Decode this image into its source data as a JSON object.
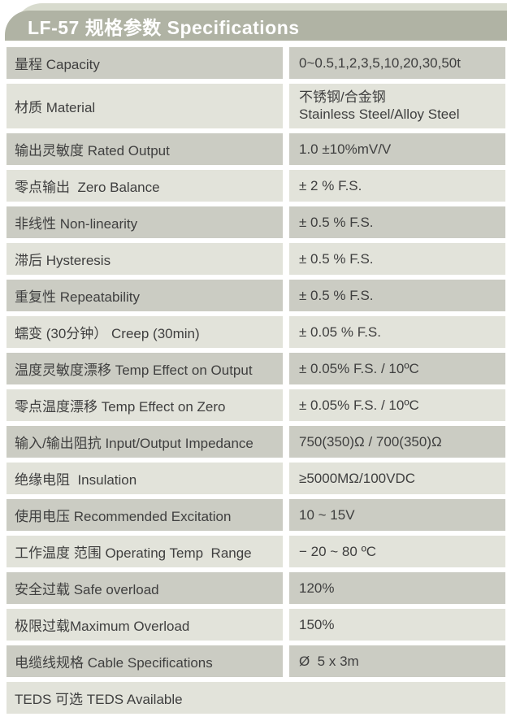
{
  "header": {
    "title": "LF-57 规格参数 Specifications"
  },
  "colors": {
    "header_bg": "#b0b3a4",
    "header_echo": "#d8dbce",
    "row_dark": "#cbccc3",
    "row_light": "#e2e3da",
    "text": "#3f3f3f",
    "header_text": "#ffffff"
  },
  "table": {
    "rows": [
      {
        "label": "量程 Capacity",
        "value": "0~0.5,1,2,3,5,10,20,30,50t",
        "shade": "dark"
      },
      {
        "label": "材质 Material",
        "value_lines": [
          "不锈钢/合金钢",
          "Stainless Steel/Alloy Steel"
        ],
        "shade": "light"
      },
      {
        "label": "输出灵敏度 Rated Output",
        "value": "1.0 ±10%mV/V",
        "shade": "dark"
      },
      {
        "label": "零点输出  Zero Balance",
        "value": "± 2 % F.S.",
        "shade": "light"
      },
      {
        "label": "非线性 Non-linearity",
        "value": "± 0.5 % F.S.",
        "shade": "dark"
      },
      {
        "label": "滞后 Hysteresis",
        "value": "± 0.5 % F.S.",
        "shade": "light"
      },
      {
        "label": "重复性 Repeatability",
        "value": "± 0.5 % F.S.",
        "shade": "dark"
      },
      {
        "label": "蠕变 (30分钟） Creep (30min)",
        "value": "± 0.05 % F.S.",
        "shade": "light"
      },
      {
        "label": "温度灵敏度漂移 Temp Effect on Output",
        "value": "± 0.05% F.S. / 10ºC",
        "shade": "dark"
      },
      {
        "label": "零点温度漂移 Temp Effect on Zero",
        "value": "± 0.05% F.S. / 10ºC",
        "shade": "light"
      },
      {
        "label": "输入/输出阻抗 Input/Output Impedance",
        "value": "750(350)Ω / 700(350)Ω",
        "shade": "dark"
      },
      {
        "label": "绝缘电阻  Insulation",
        "value": "≥5000MΩ/100VDC",
        "shade": "light"
      },
      {
        "label": "使用电压 Recommended Excitation",
        "value": "10 ~ 15V",
        "shade": "dark"
      },
      {
        "label": "工作温度 范围 Operating Temp  Range",
        "value": "− 20 ~ 80 ºC",
        "shade": "light"
      },
      {
        "label": "安全过载 Safe overload",
        "value": "120%",
        "shade": "dark"
      },
      {
        "label": "极限过载Maximum Overload",
        "value": "150%",
        "shade": "light"
      },
      {
        "label": "电缆线规格 Cable Specifications",
        "value": "Ø  5 x 3m",
        "shade": "dark"
      },
      {
        "label": "TEDS 可选 TEDS Available",
        "shade": "light",
        "full_width": true
      }
    ]
  }
}
